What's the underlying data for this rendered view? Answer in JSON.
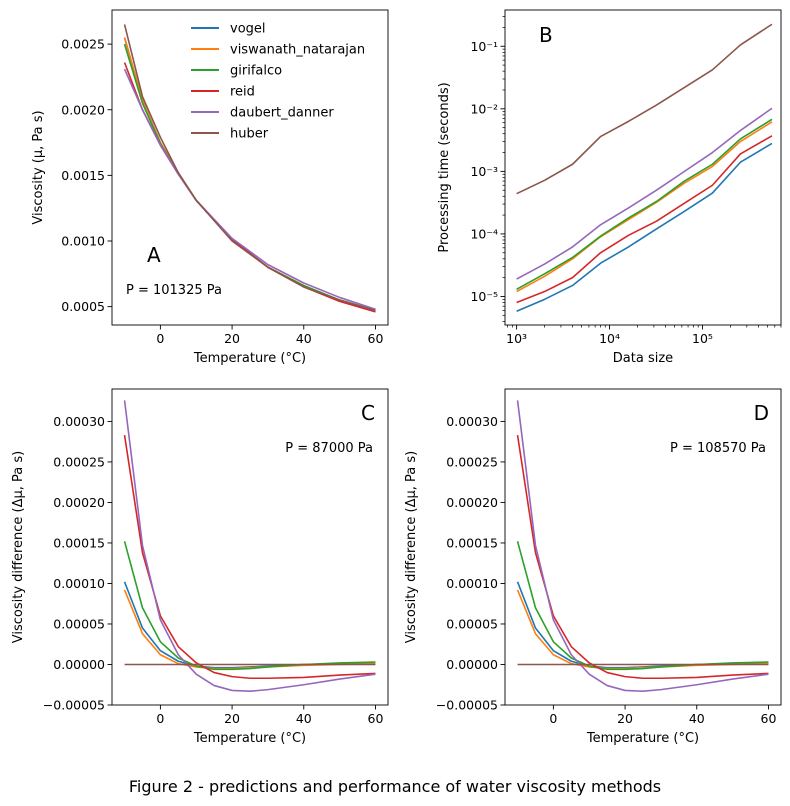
{
  "caption": "Figure 2 - predictions and performance of water viscosity methods",
  "colors": {
    "vogel": "#1f77b4",
    "viswanath_natarajan": "#ff7f0e",
    "girifalco": "#2ca02c",
    "reid": "#d62728",
    "daubert_danner": "#9467bd",
    "huber": "#8c564b"
  },
  "chart_data": [
    {
      "id": "A",
      "type": "line",
      "panel_label": "A",
      "annotation": "P = 101325 Pa",
      "xlabel": "Temperature (°C)",
      "ylabel": "Viscosity (μ, Pa s)",
      "xlim": [
        -13.5,
        63.5
      ],
      "ylim": [
        0.00036,
        0.00276
      ],
      "xticks": [
        0,
        20,
        40,
        60
      ],
      "xtick_labels": [
        "0",
        "20",
        "40",
        "60"
      ],
      "yticks": [
        0.0005,
        0.001,
        0.0015,
        0.002,
        0.0025
      ],
      "ytick_labels": [
        "0.0005",
        "0.0010",
        "0.0015",
        "0.0020",
        "0.0025"
      ],
      "legend": {
        "placement": "upper-right",
        "entries": [
          "vogel",
          "viswanath_natarajan",
          "girifalco",
          "reid",
          "daubert_danner",
          "huber"
        ]
      },
      "x": [
        -10,
        -5,
        0,
        5,
        10,
        20,
        30,
        40,
        50,
        60
      ],
      "series": [
        {
          "name": "vogel",
          "values": [
            0.00255,
            0.00207,
            0.00175,
            0.00152,
            0.00131,
            0.00101,
            0.0008,
            0.00066,
            0.00055,
            0.00047
          ]
        },
        {
          "name": "viswanath_natarajan",
          "values": [
            0.00255,
            0.00207,
            0.00175,
            0.00152,
            0.00131,
            0.00101,
            0.0008,
            0.00066,
            0.00055,
            0.00047
          ]
        },
        {
          "name": "girifalco",
          "values": [
            0.0025,
            0.00205,
            0.00174,
            0.00151,
            0.00131,
            0.00101,
            0.0008,
            0.00066,
            0.00055,
            0.00047
          ]
        },
        {
          "name": "reid",
          "values": [
            0.00236,
            0.002,
            0.00173,
            0.00151,
            0.00131,
            0.00101,
            0.0008,
            0.00065,
            0.00054,
            0.00046
          ]
        },
        {
          "name": "daubert_danner",
          "values": [
            0.00231,
            0.002,
            0.00173,
            0.00151,
            0.00131,
            0.00102,
            0.00082,
            0.00068,
            0.00057,
            0.00048
          ]
        },
        {
          "name": "huber",
          "values": [
            0.00265,
            0.0021,
            0.00179,
            0.00152,
            0.00131,
            0.001,
            0.0008,
            0.00065,
            0.00055,
            0.00047
          ]
        }
      ]
    },
    {
      "id": "B",
      "type": "line",
      "panel_label": "B",
      "xlabel": "Data size",
      "ylabel": "Processing time (seconds)",
      "xscale": "log",
      "yscale": "log",
      "xlim": [
        750,
        700000
      ],
      "ylim": [
        3.5e-06,
        0.38
      ],
      "xticks": [
        1000,
        10000,
        100000
      ],
      "xtick_labels": [
        "10³",
        "10⁴",
        "10⁵"
      ],
      "yticks": [
        1e-05,
        0.0001,
        0.001,
        0.01,
        0.1
      ],
      "ytick_labels": [
        "10⁻⁵",
        "10⁻⁴",
        "10⁻³",
        "10⁻²",
        "10⁻¹"
      ],
      "x": [
        1000,
        2000,
        4000,
        8000,
        16000,
        32000,
        64000,
        128000,
        256000,
        560000
      ],
      "series": [
        {
          "name": "vogel",
          "values": [
            5.8e-06,
            9e-06,
            1.5e-05,
            3.4e-05,
            6.2e-05,
            0.00012,
            0.00023,
            0.00045,
            0.0014,
            0.0028
          ]
        },
        {
          "name": "viswanath_natarajan",
          "values": [
            1.2e-05,
            2.1e-05,
            4e-05,
            9e-05,
            0.00017,
            0.00032,
            0.00065,
            0.0012,
            0.003,
            0.0062
          ]
        },
        {
          "name": "girifalco",
          "values": [
            1.3e-05,
            2.3e-05,
            4.2e-05,
            9.2e-05,
            0.00018,
            0.00033,
            0.0007,
            0.0013,
            0.0033,
            0.0068
          ]
        },
        {
          "name": "reid",
          "values": [
            8e-06,
            1.2e-05,
            2e-05,
            5e-05,
            9.5e-05,
            0.00016,
            0.00031,
            0.0006,
            0.0019,
            0.0037
          ]
        },
        {
          "name": "daubert_danner",
          "values": [
            1.9e-05,
            3.3e-05,
            6.2e-05,
            0.00014,
            0.00026,
            0.0005,
            0.001,
            0.002,
            0.0045,
            0.0102
          ]
        },
        {
          "name": "huber",
          "values": [
            0.00044,
            0.00072,
            0.0013,
            0.0036,
            0.0063,
            0.0115,
            0.022,
            0.042,
            0.105,
            0.225
          ]
        }
      ]
    },
    {
      "id": "C",
      "type": "line",
      "panel_label": "C",
      "annotation": "P = 87000 Pa",
      "xlabel": "Temperature (°C)",
      "ylabel": "Viscosity difference  (Δμ, Pa s)",
      "xlim": [
        -13.5,
        63.5
      ],
      "ylim": [
        -5e-05,
        0.00034
      ],
      "xticks": [
        0,
        20,
        40,
        60
      ],
      "xtick_labels": [
        "0",
        "20",
        "40",
        "60"
      ],
      "yticks": [
        -5e-05,
        0,
        5e-05,
        0.0001,
        0.00015,
        0.0002,
        0.00025,
        0.0003
      ],
      "ytick_labels": [
        "−0.00005",
        "0.00000",
        "0.00005",
        "0.00010",
        "0.00015",
        "0.00020",
        "0.00025",
        "0.00030"
      ],
      "x": [
        -10,
        -5,
        0,
        5,
        10,
        15,
        20,
        25,
        30,
        40,
        50,
        60
      ],
      "series": [
        {
          "name": "vogel",
          "values": [
            0.000102,
            4.5e-05,
            1.7e-05,
            4e-06,
            -2e-06,
            -4e-06,
            -4e-06,
            -3e-06,
            -2e-06,
            0,
            1e-06,
            1e-06
          ]
        },
        {
          "name": "viswanath_natarajan",
          "values": [
            9.2e-05,
            3.8e-05,
            1.2e-05,
            1e-06,
            -3e-06,
            -5e-06,
            -5e-06,
            -4e-06,
            -3e-06,
            -1e-06,
            0,
            1e-06
          ]
        },
        {
          "name": "girifalco",
          "values": [
            0.000152,
            7e-05,
            2.8e-05,
            8e-06,
            -2e-06,
            -6e-06,
            -6e-06,
            -5e-06,
            -3e-06,
            0,
            2e-06,
            3e-06
          ]
        },
        {
          "name": "reid",
          "values": [
            0.000283,
            0.000138,
            6e-05,
            2.2e-05,
            2e-06,
            -1e-05,
            -1.5e-05,
            -1.7e-05,
            -1.7e-05,
            -1.6e-05,
            -1.3e-05,
            -1.1e-05
          ]
        },
        {
          "name": "daubert_danner",
          "values": [
            0.000326,
            0.000147,
            5.5e-05,
            1.2e-05,
            -1.2e-05,
            -2.6e-05,
            -3.2e-05,
            -3.3e-05,
            -3.1e-05,
            -2.5e-05,
            -1.8e-05,
            -1.2e-05
          ]
        },
        {
          "name": "huber",
          "values": [
            0,
            0,
            0,
            0,
            0,
            0,
            0,
            0,
            0,
            0,
            0,
            0
          ]
        }
      ]
    },
    {
      "id": "D",
      "type": "line",
      "panel_label": "D",
      "annotation": "P = 108570 Pa",
      "xlabel": "Temperature (°C)",
      "ylabel": "Viscosity difference  (Δμ, Pa s)",
      "xlim": [
        -13.5,
        63.5
      ],
      "ylim": [
        -5e-05,
        0.00034
      ],
      "xticks": [
        0,
        20,
        40,
        60
      ],
      "xtick_labels": [
        "0",
        "20",
        "40",
        "60"
      ],
      "yticks": [
        -5e-05,
        0,
        5e-05,
        0.0001,
        0.00015,
        0.0002,
        0.00025,
        0.0003
      ],
      "ytick_labels": [
        "−0.00005",
        "0.00000",
        "0.00005",
        "0.00010",
        "0.00015",
        "0.00020",
        "0.00025",
        "0.00030"
      ],
      "x": [
        -10,
        -5,
        0,
        5,
        10,
        15,
        20,
        25,
        30,
        40,
        50,
        60
      ],
      "series": [
        {
          "name": "vogel",
          "values": [
            0.000102,
            4.5e-05,
            1.7e-05,
            4e-06,
            -2e-06,
            -4e-06,
            -4e-06,
            -3e-06,
            -2e-06,
            0,
            1e-06,
            1e-06
          ]
        },
        {
          "name": "viswanath_natarajan",
          "values": [
            9.2e-05,
            3.8e-05,
            1.2e-05,
            1e-06,
            -3e-06,
            -5e-06,
            -5e-06,
            -4e-06,
            -3e-06,
            -1e-06,
            0,
            1e-06
          ]
        },
        {
          "name": "girifalco",
          "values": [
            0.000152,
            7e-05,
            2.8e-05,
            8e-06,
            -2e-06,
            -6e-06,
            -6e-06,
            -5e-06,
            -3e-06,
            0,
            2e-06,
            3e-06
          ]
        },
        {
          "name": "reid",
          "values": [
            0.000283,
            0.000138,
            6e-05,
            2.2e-05,
            2e-06,
            -1e-05,
            -1.5e-05,
            -1.7e-05,
            -1.7e-05,
            -1.6e-05,
            -1.3e-05,
            -1.1e-05
          ]
        },
        {
          "name": "daubert_danner",
          "values": [
            0.000326,
            0.000147,
            5.5e-05,
            1.2e-05,
            -1.2e-05,
            -2.6e-05,
            -3.2e-05,
            -3.3e-05,
            -3.1e-05,
            -2.5e-05,
            -1.8e-05,
            -1.2e-05
          ]
        },
        {
          "name": "huber",
          "values": [
            0,
            0,
            0,
            0,
            0,
            0,
            0,
            0,
            0,
            0,
            0,
            0
          ]
        }
      ]
    }
  ]
}
